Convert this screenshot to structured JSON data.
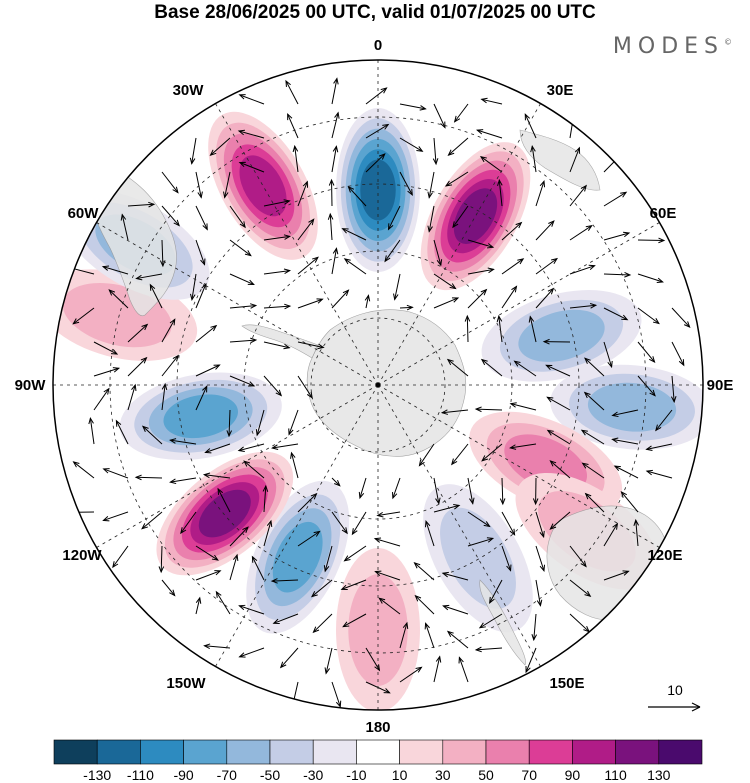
{
  "title": "Base 28/06/2025 00 UTC, valid 01/07/2025 00 UTC",
  "logo": {
    "text": "MODES",
    "mark": "©"
  },
  "longitude_labels": [
    "0",
    "30E",
    "60E",
    "90E",
    "120E",
    "150E",
    "180",
    "150W",
    "120W",
    "90W",
    "60W",
    "30W"
  ],
  "vector_reference": "10",
  "colorbar": {
    "levels": [
      "-130",
      "-110",
      "-90",
      "-70",
      "-50",
      "-30",
      "-10",
      "10",
      "30",
      "50",
      "70",
      "90",
      "110",
      "130"
    ],
    "colors": [
      "#0e3f5c",
      "#1a6898",
      "#2d8bc0",
      "#5aa4d0",
      "#93b8dc",
      "#c4cde6",
      "#e9e6f1",
      "#ffffff",
      "#f9d6db",
      "#f3b0c3",
      "#ea80ad",
      "#dc3d96",
      "#b01c87",
      "#7a127d",
      "#4a0a6d"
    ]
  },
  "map": {
    "projection": "south-polar-stereographic",
    "land_color": "#e6e6e6",
    "grid": "dashed",
    "anomaly_centres": [
      {
        "sign": "negative",
        "value": -130,
        "lon": 0
      },
      {
        "sign": "positive",
        "value": 120,
        "lon": 30
      },
      {
        "sign": "negative",
        "value": -70,
        "lon": 75
      },
      {
        "sign": "negative",
        "value": -60,
        "lon": 95
      },
      {
        "sign": "positive",
        "value": 60,
        "lon": 115
      },
      {
        "sign": "positive",
        "value": 50,
        "lon": 125
      },
      {
        "sign": "negative",
        "value": -40,
        "lon": 150
      },
      {
        "sign": "positive",
        "value": 40,
        "lon": 180
      },
      {
        "sign": "negative",
        "value": -90,
        "lon": -155
      },
      {
        "sign": "positive",
        "value": 130,
        "lon": -130
      },
      {
        "sign": "negative",
        "value": -90,
        "lon": -100
      },
      {
        "sign": "positive",
        "value": 40,
        "lon": -75
      },
      {
        "sign": "negative",
        "value": -70,
        "lon": -60
      },
      {
        "sign": "positive",
        "value": 100,
        "lon": -30
      }
    ]
  }
}
